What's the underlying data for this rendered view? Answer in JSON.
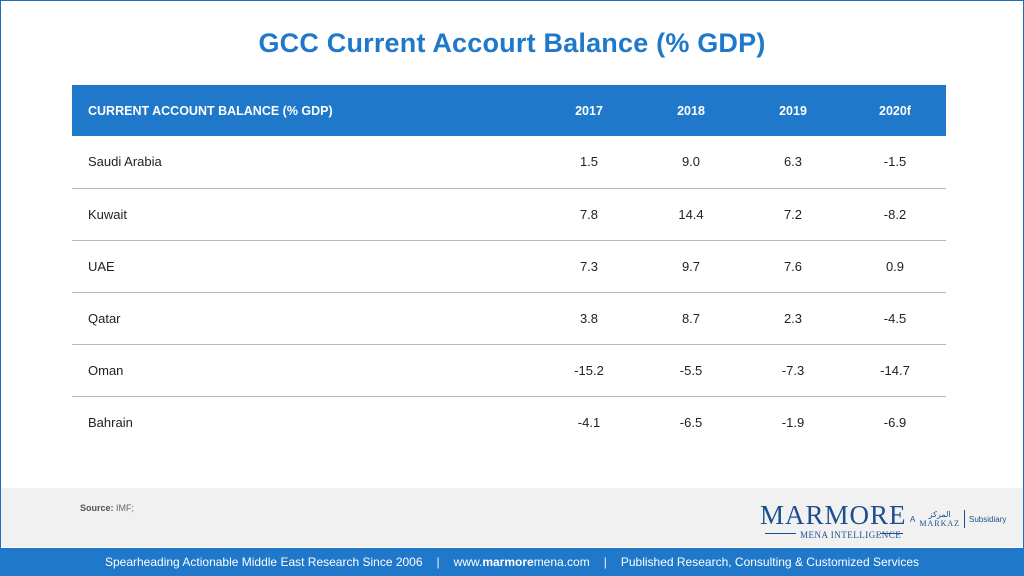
{
  "title": "GCC Current Accourt Balance (% GDP)",
  "chart_data": {
    "type": "table",
    "title": "GCC Current Accourt Balance (% GDP)",
    "columns": [
      "CURRENT ACCOUNT BALANCE (% GDP)",
      "2017",
      "2018",
      "2019",
      "2020f"
    ],
    "rows": [
      {
        "country": "Saudi Arabia",
        "values": [
          "1.5",
          "9.0",
          "6.3",
          "-1.5"
        ]
      },
      {
        "country": "Kuwait",
        "values": [
          "7.8",
          "14.4",
          "7.2",
          "-8.2"
        ]
      },
      {
        "country": "UAE",
        "values": [
          "7.3",
          "9.7",
          "7.6",
          "0.9"
        ]
      },
      {
        "country": "Qatar",
        "values": [
          "3.8",
          "8.7",
          "2.3",
          "-4.5"
        ]
      },
      {
        "country": "Oman",
        "values": [
          "-15.2",
          "-5.5",
          "-7.3",
          "-14.7"
        ]
      },
      {
        "country": "Bahrain",
        "values": [
          "-4.1",
          "-6.5",
          "-1.9",
          "-6.9"
        ]
      }
    ]
  },
  "source": {
    "label": "Source:",
    "text": "IMF;"
  },
  "logo": {
    "main": "MARMORE",
    "sub": "MENA INTELLIGENCE",
    "partner_prefix": "A",
    "partner_arabic": "المركز",
    "partner_name": "MARKAZ",
    "partner_suffix": "Subsidiary"
  },
  "footer": {
    "tagline": "Spearheading Actionable Middle East Research Since 2006",
    "separator": "|",
    "url_prefix": "www.",
    "url_brand": "marmore",
    "url_suffix": "mena.com",
    "services": "Published Research, Consulting & Customized Services"
  },
  "colors": {
    "accent": "#1f78c9",
    "logo": "#1d4f8f",
    "band": "#f1f1f1"
  }
}
